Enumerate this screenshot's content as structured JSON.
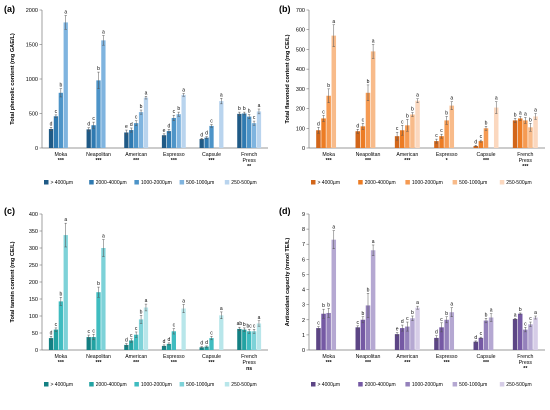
{
  "colors": {
    "panel_a": [
      "#1f5a86",
      "#2f7ab1",
      "#4d94c8",
      "#7fb4df",
      "#b9d4ee"
    ],
    "panel_b": [
      "#d2661a",
      "#ec7c24",
      "#f59a52",
      "#f8bb8a",
      "#fbd8bf"
    ],
    "panel_c": [
      "#138083",
      "#22a2a2",
      "#3fbcc0",
      "#7dd2d8",
      "#b8e6ea"
    ],
    "panel_d": [
      "#5c4585",
      "#7559a4",
      "#9481bb",
      "#b5a8d2",
      "#d6cde7"
    ]
  },
  "chart_data": [
    {
      "panel_label": "(a)",
      "type": "bar",
      "ylabel": "Total phenolic content (mg GAE/L)",
      "ylim": [
        0,
        2000
      ],
      "yticks": [
        0,
        500,
        1000,
        1500,
        2000
      ],
      "categories": [
        "Moka",
        "Neapolitan",
        "American",
        "Espresso",
        "Capsule",
        "French Press"
      ],
      "significance": [
        "***",
        "***",
        "***",
        "***",
        "***",
        "**"
      ],
      "series": [
        {
          "name": "> 4000µm",
          "values": [
            275,
            270,
            225,
            185,
            130,
            495
          ],
          "errors": [
            25,
            25,
            35,
            20,
            10,
            25
          ],
          "letters": [
            "d",
            "d",
            "e",
            "e",
            "d",
            "b"
          ]
        },
        {
          "name": "2000-4000µm",
          "values": [
            460,
            330,
            260,
            245,
            150,
            500
          ],
          "errors": [
            20,
            45,
            30,
            25,
            15,
            20
          ],
          "letters": [
            "c",
            "c",
            "d",
            "d",
            "d",
            "b"
          ]
        },
        {
          "name": "1000-2000µm",
          "values": [
            800,
            980,
            360,
            435,
            320,
            455
          ],
          "errors": [
            60,
            120,
            35,
            40,
            20,
            30
          ],
          "letters": [
            "b",
            "b",
            "c",
            "c",
            "c",
            "b"
          ]
        },
        {
          "name": "500-1000µm",
          "values": [
            1820,
            1560,
            520,
            490,
            0,
            360
          ],
          "errors": [
            100,
            70,
            30,
            30,
            0,
            30
          ],
          "letters": [
            "a",
            "a",
            "b",
            "b",
            "",
            "c"
          ]
        },
        {
          "name": "250-500µm",
          "values": [
            0,
            0,
            730,
            770,
            680,
            530
          ],
          "errors": [
            0,
            0,
            20,
            20,
            40,
            35
          ],
          "letters": [
            "",
            "",
            "a",
            "a",
            "a",
            "a"
          ]
        }
      ]
    },
    {
      "panel_label": "(b)",
      "type": "bar",
      "ylabel": "Total flavonoid content (mg CE/L)",
      "ylim": [
        0,
        700
      ],
      "yticks": [
        0,
        100,
        200,
        300,
        400,
        500,
        600,
        700
      ],
      "categories": [
        "Moka",
        "Neapolitan",
        "American",
        "Espresso",
        "Capsule",
        "French Press"
      ],
      "significance": [
        "***",
        "***",
        "***",
        "*",
        "***",
        "***"
      ],
      "series": [
        {
          "name": "> 4000µm",
          "values": [
            90,
            85,
            60,
            35,
            10,
            140
          ],
          "errors": [
            15,
            10,
            20,
            10,
            3,
            10
          ],
          "letters": [
            "d",
            "d",
            "c",
            "c",
            "d",
            "b"
          ]
        },
        {
          "name": "2000-4000µm",
          "values": [
            150,
            110,
            90,
            60,
            35,
            150
          ],
          "errors": [
            15,
            15,
            25,
            10,
            5,
            10
          ],
          "letters": [
            "c",
            "c",
            "c",
            "c",
            "c",
            "a"
          ]
        },
        {
          "name": "1000-2000µm",
          "values": [
            265,
            280,
            115,
            140,
            100,
            140
          ],
          "errors": [
            35,
            40,
            30,
            20,
            10,
            15
          ],
          "letters": [
            "b",
            "b",
            "b",
            "b",
            "b",
            "a"
          ]
        },
        {
          "name": "500-1000µm",
          "values": [
            570,
            490,
            170,
            215,
            0,
            105
          ],
          "errors": [
            55,
            35,
            10,
            20,
            0,
            20
          ],
          "letters": [
            "a",
            "a",
            "b",
            "a",
            "",
            "b"
          ]
        },
        {
          "name": "250-500µm",
          "values": [
            0,
            0,
            240,
            0,
            205,
            160
          ],
          "errors": [
            0,
            0,
            10,
            0,
            30,
            15
          ],
          "letters": [
            "",
            "",
            "a",
            "",
            "a",
            "a"
          ]
        }
      ]
    },
    {
      "panel_label": "(c)",
      "type": "bar",
      "ylabel": "Total tannin content (mg CE/L)",
      "ylim": [
        0,
        400
      ],
      "yticks": [
        0,
        50,
        100,
        150,
        200,
        250,
        300,
        350,
        400
      ],
      "categories": [
        "Moka",
        "Neapolitan",
        "American",
        "Espresso",
        "Capsule",
        "French Press"
      ],
      "significance": [
        "***",
        "***",
        "***",
        "***",
        "***",
        "ns"
      ],
      "series": [
        {
          "name": "> 4000µm",
          "values": [
            35,
            38,
            15,
            12,
            8,
            62
          ],
          "errors": [
            5,
            6,
            4,
            3,
            2,
            5
          ],
          "letters": [
            "d",
            "c",
            "d",
            "d",
            "d",
            "ab"
          ]
        },
        {
          "name": "2000-4000µm",
          "values": [
            60,
            38,
            28,
            18,
            10,
            60
          ],
          "errors": [
            5,
            8,
            5,
            3,
            2,
            5
          ],
          "letters": [
            "c",
            "c",
            "c",
            "d",
            "d",
            "b"
          ]
        },
        {
          "name": "1000-2000µm",
          "values": [
            143,
            170,
            45,
            55,
            35,
            55
          ],
          "errors": [
            12,
            15,
            8,
            8,
            5,
            6
          ],
          "letters": [
            "b",
            "b",
            "c",
            "c",
            "c",
            "bc"
          ]
        },
        {
          "name": "500-1000µm",
          "values": [
            338,
            300,
            90,
            0,
            0,
            55
          ],
          "errors": [
            35,
            25,
            12,
            0,
            0,
            6
          ],
          "letters": [
            "a",
            "a",
            "b",
            "",
            "",
            "c"
          ]
        },
        {
          "name": "250-500µm",
          "values": [
            0,
            0,
            125,
            122,
            102,
            78
          ],
          "errors": [
            0,
            0,
            10,
            12,
            10,
            8
          ],
          "letters": [
            "",
            "",
            "a",
            "a",
            "a",
            "a"
          ]
        }
      ]
    },
    {
      "panel_label": "(d)",
      "type": "bar",
      "ylabel": "Antioxidant capacity (mmol TE/L)",
      "ylim": [
        0,
        9
      ],
      "yticks": [
        0,
        1,
        2,
        3,
        4,
        5,
        6,
        7,
        8,
        9
      ],
      "categories": [
        "Moka",
        "Neapolitan",
        "American",
        "Espresso",
        "Capsule",
        "French Press"
      ],
      "significance": [
        "***",
        "***",
        "***",
        "***",
        "***",
        "**"
      ],
      "series": [
        {
          "name": "> 4000µm",
          "values": [
            1.45,
            1.5,
            1.05,
            0.8,
            0.55,
            2.05
          ],
          "errors": [
            0.1,
            0.1,
            0.1,
            0.15,
            0.05,
            0.05
          ],
          "letters": [
            "c",
            "c",
            "e",
            "d",
            "d",
            "a"
          ]
        },
        {
          "name": "2000-4000µm",
          "values": [
            2.4,
            2.0,
            1.45,
            1.5,
            0.8,
            2.4
          ],
          "errors": [
            0.3,
            0.2,
            0.2,
            0.3,
            0.05,
            0.05
          ],
          "letters": [
            "b",
            "b",
            "d",
            "c",
            "c",
            "b"
          ]
        },
        {
          "name": "1000-2000µm",
          "values": [
            2.45,
            2.95,
            1.55,
            2.0,
            1.95,
            1.35
          ],
          "errors": [
            0.3,
            0.8,
            0.3,
            0.2,
            0.15,
            0.15
          ],
          "letters": [
            "b",
            "b",
            "c",
            "b",
            "b",
            "c"
          ]
        },
        {
          "name": "500-1000µm",
          "values": [
            7.3,
            6.6,
            2.1,
            2.5,
            2.15,
            1.7
          ],
          "errors": [
            0.6,
            0.35,
            0.15,
            0.3,
            0.25,
            0.15
          ],
          "letters": [
            "a",
            "a",
            "b",
            "a",
            "a",
            "c"
          ]
        },
        {
          "name": "250-500µm",
          "values": [
            0,
            0,
            2.8,
            0,
            0,
            2.15
          ],
          "errors": [
            0,
            0,
            0.1,
            0,
            0,
            0.1
          ],
          "letters": [
            "",
            "",
            "a",
            "",
            "",
            "a"
          ]
        }
      ]
    }
  ]
}
